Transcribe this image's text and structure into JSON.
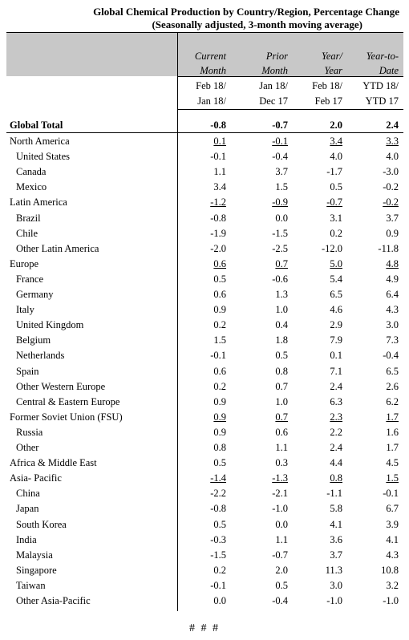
{
  "title": "Global Chemical Production by Country/Region, Percentage Change",
  "subtitle": "(Seasonally adjusted, 3-month moving average)",
  "columns": [
    {
      "h1": "Current",
      "h2": "Month",
      "p1": "Feb 18/",
      "p2": "Jan 18/"
    },
    {
      "h1": "Prior",
      "h2": "Month",
      "p1": "Jan 18/",
      "p2": "Dec 17"
    },
    {
      "h1": "Year/",
      "h2": "Year",
      "p1": "Feb 18/",
      "p2": "Feb 17"
    },
    {
      "h1": "Year-to-",
      "h2": "Date",
      "p1": "YTD 18/",
      "p2": "YTD 17"
    }
  ],
  "rows": [
    {
      "label": "Global Total",
      "indent": 0,
      "bold": true,
      "underline": false,
      "values": [
        "-0.8",
        "-0.7",
        "2.0",
        "2.4"
      ]
    },
    {
      "label": "North America",
      "indent": 0,
      "bold": false,
      "underline": true,
      "values": [
        "0.1",
        "-0.1",
        "3.4",
        "3.3"
      ]
    },
    {
      "label": "United States",
      "indent": 1,
      "bold": false,
      "underline": false,
      "values": [
        "-0.1",
        "-0.4",
        "4.0",
        "4.0"
      ]
    },
    {
      "label": "Canada",
      "indent": 1,
      "bold": false,
      "underline": false,
      "values": [
        "1.1",
        "3.7",
        "-1.7",
        "-3.0"
      ]
    },
    {
      "label": "Mexico",
      "indent": 1,
      "bold": false,
      "underline": false,
      "values": [
        "3.4",
        "1.5",
        "0.5",
        "-0.2"
      ]
    },
    {
      "label": "Latin America",
      "indent": 0,
      "bold": false,
      "underline": true,
      "values": [
        "-1.2",
        "-0.9",
        "-0.7",
        "-0.2"
      ]
    },
    {
      "label": "Brazil",
      "indent": 1,
      "bold": false,
      "underline": false,
      "values": [
        "-0.8",
        "0.0",
        "3.1",
        "3.7"
      ]
    },
    {
      "label": "Chile",
      "indent": 1,
      "bold": false,
      "underline": false,
      "values": [
        "-1.9",
        "-1.5",
        "0.2",
        "0.9"
      ]
    },
    {
      "label": "Other Latin America",
      "indent": 1,
      "bold": false,
      "underline": false,
      "values": [
        "-2.0",
        "-2.5",
        "-12.0",
        "-11.8"
      ]
    },
    {
      "label": "Europe",
      "indent": 0,
      "bold": false,
      "underline": true,
      "values": [
        "0.6",
        "0.7",
        "5.0",
        "4.8"
      ]
    },
    {
      "label": "France",
      "indent": 1,
      "bold": false,
      "underline": false,
      "values": [
        "0.5",
        "-0.6",
        "5.4",
        "4.9"
      ]
    },
    {
      "label": "Germany",
      "indent": 1,
      "bold": false,
      "underline": false,
      "values": [
        "0.6",
        "1.3",
        "6.5",
        "6.4"
      ]
    },
    {
      "label": "Italy",
      "indent": 1,
      "bold": false,
      "underline": false,
      "values": [
        "0.9",
        "1.0",
        "4.6",
        "4.3"
      ]
    },
    {
      "label": "United Kingdom",
      "indent": 1,
      "bold": false,
      "underline": false,
      "values": [
        "0.2",
        "0.4",
        "2.9",
        "3.0"
      ]
    },
    {
      "label": "Belgium",
      "indent": 1,
      "bold": false,
      "underline": false,
      "values": [
        "1.5",
        "1.8",
        "7.9",
        "7.3"
      ]
    },
    {
      "label": "Netherlands",
      "indent": 1,
      "bold": false,
      "underline": false,
      "values": [
        "-0.1",
        "0.5",
        "0.1",
        "-0.4"
      ]
    },
    {
      "label": "Spain",
      "indent": 1,
      "bold": false,
      "underline": false,
      "values": [
        "0.6",
        "0.8",
        "7.1",
        "6.5"
      ]
    },
    {
      "label": "Other Western Europe",
      "indent": 1,
      "bold": false,
      "underline": false,
      "values": [
        "0.2",
        "0.7",
        "2.4",
        "2.6"
      ]
    },
    {
      "label": "Central & Eastern Europe",
      "indent": 1,
      "bold": false,
      "underline": false,
      "values": [
        "0.9",
        "1.0",
        "6.3",
        "6.2"
      ]
    },
    {
      "label": "Former Soviet Union (FSU)",
      "indent": 0,
      "bold": false,
      "underline": true,
      "values": [
        "0.9",
        "0.7",
        "2.3",
        "1.7"
      ]
    },
    {
      "label": "Russia",
      "indent": 1,
      "bold": false,
      "underline": false,
      "values": [
        "0.9",
        "0.6",
        "2.2",
        "1.6"
      ]
    },
    {
      "label": "Other",
      "indent": 1,
      "bold": false,
      "underline": false,
      "values": [
        "0.8",
        "1.1",
        "2.4",
        "1.7"
      ]
    },
    {
      "label": "Africa & Middle East",
      "indent": 0,
      "bold": false,
      "underline": false,
      "values": [
        "0.5",
        "0.3",
        "4.4",
        "4.5"
      ]
    },
    {
      "label": "Asia- Pacific",
      "indent": 0,
      "bold": false,
      "underline": true,
      "values": [
        "-1.4",
        "-1.3",
        "0.8",
        "1.5"
      ]
    },
    {
      "label": "China",
      "indent": 1,
      "bold": false,
      "underline": false,
      "values": [
        "-2.2",
        "-2.1",
        "-1.1",
        "-0.1"
      ]
    },
    {
      "label": "Japan",
      "indent": 1,
      "bold": false,
      "underline": false,
      "values": [
        "-0.8",
        "-1.0",
        "5.8",
        "6.7"
      ]
    },
    {
      "label": "South Korea",
      "indent": 1,
      "bold": false,
      "underline": false,
      "values": [
        "0.5",
        "0.0",
        "4.1",
        "3.9"
      ]
    },
    {
      "label": "India",
      "indent": 1,
      "bold": false,
      "underline": false,
      "values": [
        "-0.3",
        "1.1",
        "3.6",
        "4.1"
      ]
    },
    {
      "label": "Malaysia",
      "indent": 1,
      "bold": false,
      "underline": false,
      "values": [
        "-1.5",
        "-0.7",
        "3.7",
        "4.3"
      ]
    },
    {
      "label": "Singapore",
      "indent": 1,
      "bold": false,
      "underline": false,
      "values": [
        "0.2",
        "2.0",
        "11.3",
        "10.8"
      ]
    },
    {
      "label": "Taiwan",
      "indent": 1,
      "bold": false,
      "underline": false,
      "values": [
        "-0.1",
        "0.5",
        "3.0",
        "3.2"
      ]
    },
    {
      "label": "Other Asia-Pacific",
      "indent": 1,
      "bold": false,
      "underline": false,
      "values": [
        "0.0",
        "-0.4",
        "-1.0",
        "-1.0"
      ]
    }
  ],
  "footer": "# # #"
}
